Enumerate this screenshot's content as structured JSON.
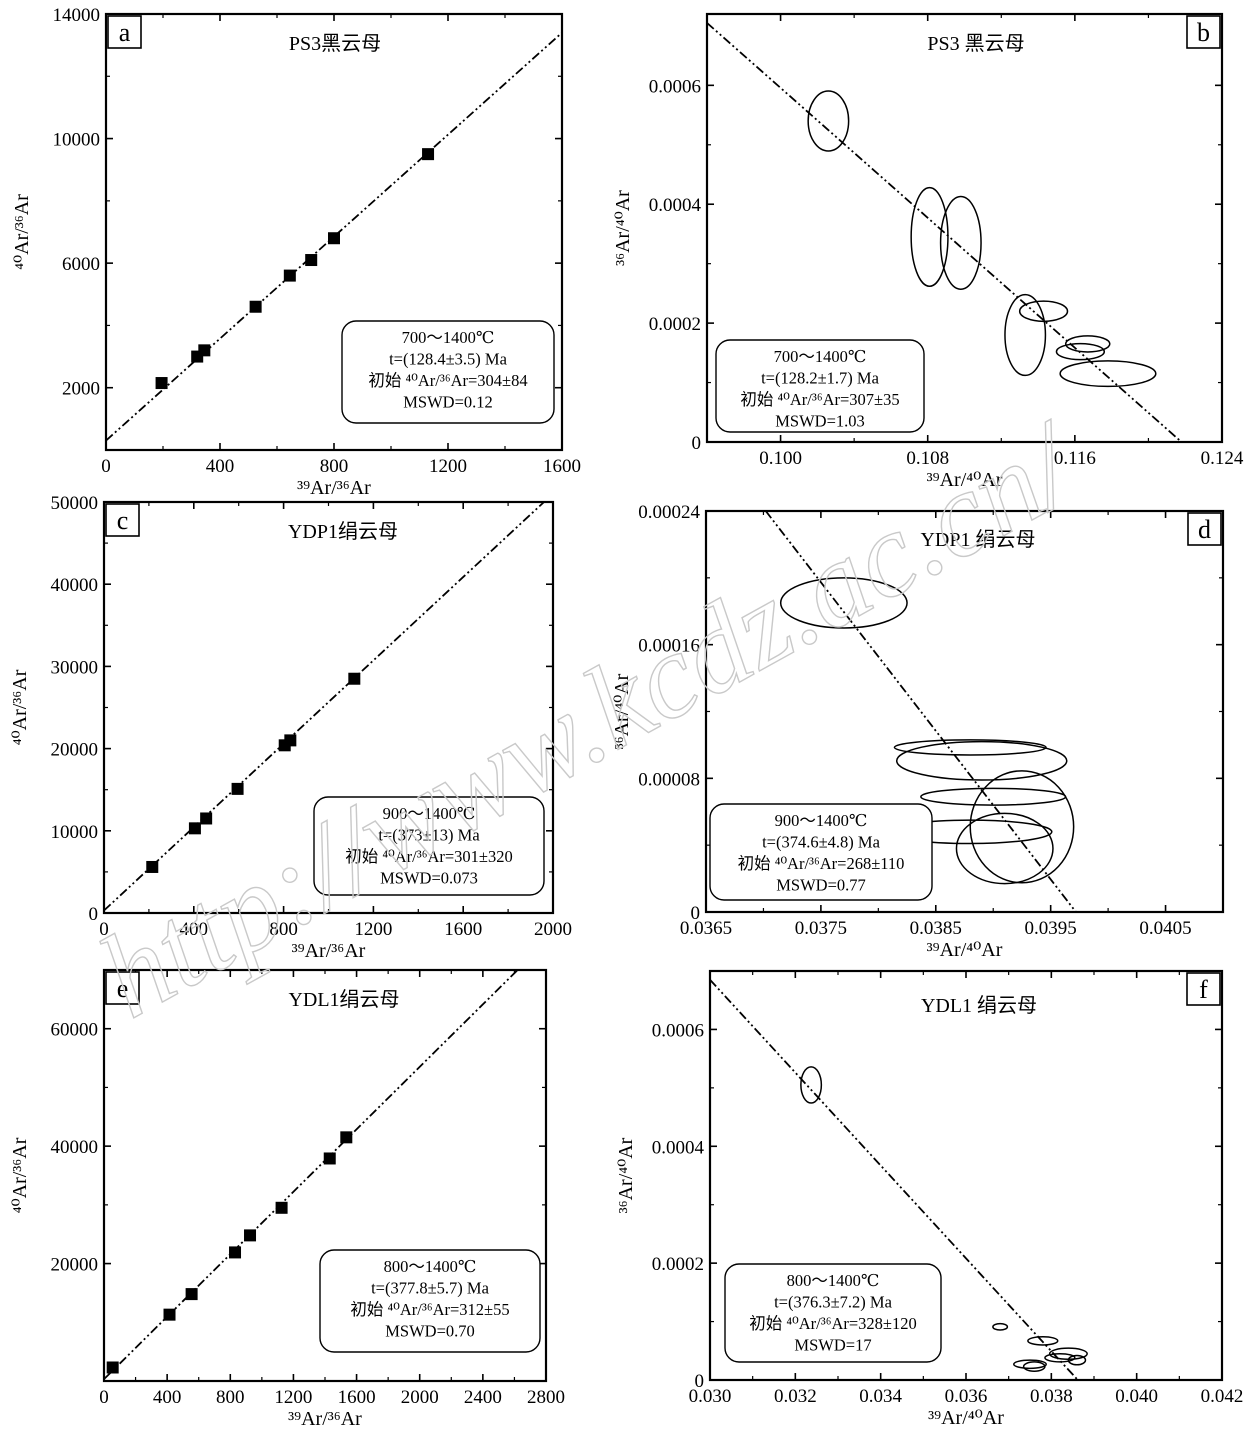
{
  "watermark": "http://www.kcdz.ac.cn/",
  "chart_data": [
    {
      "id": "a",
      "type": "scatter",
      "letter": "a",
      "title": "PS3黑云母",
      "xlabel": "³⁹Ar/³⁶Ar",
      "ylabel": "⁴⁰Ar/³⁶Ar",
      "xlim": [
        0,
        1600
      ],
      "ylim": [
        0,
        14000
      ],
      "xticks": [
        0,
        400,
        800,
        1200,
        1600
      ],
      "xtick_labels": [
        "0",
        "400",
        "800",
        "1200",
        "1600"
      ],
      "yticks": [
        2000,
        6000,
        10000,
        14000
      ],
      "ytick_labels": [
        "2000",
        "6000",
        "10000",
        "14000"
      ],
      "points": [
        {
          "x": 195,
          "y": 2150
        },
        {
          "x": 320,
          "y": 3000
        },
        {
          "x": 345,
          "y": 3200
        },
        {
          "x": 525,
          "y": 4600
        },
        {
          "x": 645,
          "y": 5600
        },
        {
          "x": 720,
          "y": 6100
        },
        {
          "x": 800,
          "y": 6800
        },
        {
          "x": 1130,
          "y": 9500
        }
      ],
      "fit_line": {
        "x0": 0,
        "y0": 304,
        "x1": 1600,
        "y1": 13400
      },
      "annotation": [
        "700～1400℃",
        "t=(128.4±3.5) Ma",
        "初始 ⁴⁰Ar/³⁶Ar=304±84",
        "MSWD=0.12"
      ]
    },
    {
      "id": "b",
      "type": "scatter",
      "letter": "b",
      "title": "PS3 黑云母",
      "xlabel": "³⁹Ar/⁴⁰Ar",
      "ylabel": "³⁶Ar/⁴⁰Ar",
      "xlim": [
        0.096,
        0.124
      ],
      "ylim": [
        0,
        0.00072
      ],
      "xticks": [
        0.1,
        0.108,
        0.116,
        0.124
      ],
      "xtick_labels": [
        "0.100",
        "0.108",
        "0.116",
        "0.124"
      ],
      "yticks": [
        0,
        0.0002,
        0.0004,
        0.0006
      ],
      "ytick_labels": [
        "0",
        "0.0002",
        "0.0004",
        "0.0006"
      ],
      "ellipses": [
        {
          "cx": 0.1026,
          "cy": 0.00054,
          "rx": 0.0011,
          "ry": 5.05e-05
        },
        {
          "cx": 0.1081,
          "cy": 0.000345,
          "rx": 0.001,
          "ry": 8.3e-05
        },
        {
          "cx": 0.1098,
          "cy": 0.000335,
          "rx": 0.0011,
          "ry": 7.8e-05
        },
        {
          "cx": 0.1133,
          "cy": 0.00018,
          "rx": 0.0011,
          "ry": 6.8e-05
        },
        {
          "cx": 0.1143,
          "cy": 0.00022,
          "rx": 0.0013,
          "ry": 1.7e-05
        },
        {
          "cx": 0.1167,
          "cy": 0.000165,
          "rx": 0.0012,
          "ry": 1.35e-05
        },
        {
          "cx": 0.1163,
          "cy": 0.000152,
          "rx": 0.0013,
          "ry": 1.35e-05
        },
        {
          "cx": 0.1178,
          "cy": 0.000115,
          "rx": 0.0026,
          "ry": 2.15e-05
        }
      ],
      "fit_line": {
        "x0": 0.096,
        "y0": 0.000705,
        "x1": 0.1218,
        "y1": 0.0
      },
      "annotation": [
        "700～1400℃",
        "t=(128.2±1.7) Ma",
        "初始 ⁴⁰Ar/³⁶Ar=307±35",
        "MSWD=1.03"
      ]
    },
    {
      "id": "c",
      "type": "scatter",
      "letter": "c",
      "title": "YDP1绢云母",
      "xlabel": "³⁹Ar/³⁶Ar",
      "ylabel": "⁴⁰Ar/³⁶Ar",
      "xlim": [
        0,
        2000
      ],
      "ylim": [
        0,
        50000
      ],
      "xticks": [
        0,
        400,
        800,
        1200,
        1600,
        2000
      ],
      "xtick_labels": [
        "0",
        "400",
        "800",
        "1200",
        "1600",
        "2000"
      ],
      "yticks": [
        0,
        10000,
        20000,
        30000,
        40000,
        50000
      ],
      "ytick_labels": [
        "0",
        "10000",
        "20000",
        "30000",
        "40000",
        "50000"
      ],
      "points": [
        {
          "x": 215,
          "y": 5600
        },
        {
          "x": 405,
          "y": 10300
        },
        {
          "x": 455,
          "y": 11500
        },
        {
          "x": 595,
          "y": 15100
        },
        {
          "x": 805,
          "y": 20400
        },
        {
          "x": 830,
          "y": 21000
        },
        {
          "x": 1115,
          "y": 28500
        }
      ],
      "fit_line": {
        "x0": 0,
        "y0": 301,
        "x1": 1960,
        "y1": 50000
      },
      "annotation": [
        "900～1400℃",
        "t=(373±13) Ma",
        "初始 ⁴⁰Ar/³⁶Ar=301±320",
        "MSWD=0.073"
      ]
    },
    {
      "id": "d",
      "type": "scatter",
      "letter": "d",
      "title": "YDP1 绢云母",
      "xlabel": "³⁹Ar/⁴⁰Ar",
      "ylabel": "³⁶Ar/⁴⁰Ar",
      "xlim": [
        0.0365,
        0.041
      ],
      "ylim": [
        0,
        0.00024
      ],
      "xticks": [
        0.0365,
        0.0375,
        0.0385,
        0.0395,
        0.0405
      ],
      "xtick_labels": [
        "0.0365",
        "0.0375",
        "0.0385",
        "0.0395",
        "0.0405"
      ],
      "yticks": [
        0,
        8e-05,
        0.00016,
        0.00024
      ],
      "ytick_labels": [
        "0",
        "0.00008",
        "0.00016",
        "0.00024"
      ],
      "ellipses": [
        {
          "cx": 0.0377,
          "cy": 0.000185,
          "rx": 0.00055,
          "ry": 1.5e-05
        },
        {
          "cx": 0.0388,
          "cy": 9.85e-05,
          "rx": 0.00066,
          "ry": 4.5e-06
        },
        {
          "cx": 0.0389,
          "cy": 9.05e-05,
          "rx": 0.00074,
          "ry": 1.15e-05
        },
        {
          "cx": 0.039,
          "cy": 6.9e-05,
          "rx": 0.00063,
          "ry": 5e-06
        },
        {
          "cx": 0.03925,
          "cy": 5.1e-05,
          "rx": 0.00045,
          "ry": 3.35e-05
        },
        {
          "cx": 0.0388,
          "cy": 4.8e-05,
          "rx": 0.00071,
          "ry": 7e-06
        },
        {
          "cx": 0.0391,
          "cy": 3.8e-05,
          "rx": 0.00042,
          "ry": 2.1e-05
        }
      ],
      "fit_line": {
        "x0": 0.03702,
        "y0": 0.00024,
        "x1": 0.03972,
        "y1": 0.0
      },
      "annotation": [
        "900～1400℃",
        "t=(374.6±4.8) Ma",
        "初始 ⁴⁰Ar/³⁶Ar=268±110",
        "MSWD=0.77"
      ]
    },
    {
      "id": "e",
      "type": "scatter",
      "letter": "e",
      "title": "YDL1绢云母",
      "xlabel": "³⁹Ar/³⁶Ar",
      "ylabel": "⁴⁰Ar/³⁶Ar",
      "xlim": [
        0,
        2800
      ],
      "ylim": [
        0,
        70000
      ],
      "xticks": [
        0,
        400,
        800,
        1200,
        1600,
        2000,
        2400,
        2800
      ],
      "xtick_labels": [
        "0",
        "400",
        "800",
        "1200",
        "1600",
        "2000",
        "2400",
        "2800"
      ],
      "yticks": [
        20000,
        40000,
        60000
      ],
      "ytick_labels": [
        "20000",
        "40000",
        "60000"
      ],
      "points": [
        {
          "x": 55,
          "y": 2300
        },
        {
          "x": 415,
          "y": 11300
        },
        {
          "x": 555,
          "y": 14800
        },
        {
          "x": 830,
          "y": 21900
        },
        {
          "x": 925,
          "y": 24800
        },
        {
          "x": 1125,
          "y": 29500
        },
        {
          "x": 1430,
          "y": 37900
        },
        {
          "x": 1535,
          "y": 41500
        }
      ],
      "fit_line": {
        "x0": 0,
        "y0": 312,
        "x1": 2620,
        "y1": 70000
      },
      "annotation": [
        "800～1400℃",
        "t=(377.8±5.7) Ma",
        "初始 ⁴⁰Ar/³⁶Ar=312±55",
        "MSWD=0.70"
      ]
    },
    {
      "id": "f",
      "type": "scatter",
      "letter": "f",
      "title": "YDL1 绢云母",
      "xlabel": "³⁹Ar/⁴⁰Ar",
      "ylabel": "³⁶Ar/⁴⁰Ar",
      "xlim": [
        0.03,
        0.042
      ],
      "ylim": [
        0,
        0.0007
      ],
      "xticks": [
        0.03,
        0.032,
        0.034,
        0.036,
        0.038,
        0.04,
        0.042
      ],
      "xtick_labels": [
        "0.030",
        "0.032",
        "0.034",
        "0.036",
        "0.038",
        "0.040",
        "0.042"
      ],
      "yticks": [
        0,
        0.0002,
        0.0004,
        0.0006
      ],
      "ytick_labels": [
        "0",
        "0.0002",
        "0.0004",
        "0.0006"
      ],
      "ellipses": [
        {
          "cx": 0.03237,
          "cy": 0.000505,
          "rx": 0.00024,
          "ry": 3.1e-05
        },
        {
          "cx": 0.0368,
          "cy": 9.1e-05,
          "rx": 0.00017,
          "ry": 5.5e-06
        },
        {
          "cx": 0.0378,
          "cy": 6.7e-05,
          "rx": 0.00035,
          "ry": 7e-06
        },
        {
          "cx": 0.0384,
          "cy": 4.5e-05,
          "rx": 0.00044,
          "ry": 9.5e-06
        },
        {
          "cx": 0.0382,
          "cy": 3.8e-05,
          "rx": 0.00035,
          "ry": 7e-06
        },
        {
          "cx": 0.0386,
          "cy": 3.4e-05,
          "rx": 0.0002,
          "ry": 8e-06
        },
        {
          "cx": 0.0375,
          "cy": 2.7e-05,
          "rx": 0.00038,
          "ry": 7e-06
        },
        {
          "cx": 0.0376,
          "cy": 2.3e-05,
          "rx": 0.00025,
          "ry": 8e-06
        }
      ],
      "fit_line": {
        "x0": 0.03,
        "y0": 0.000685,
        "x1": 0.03862,
        "y1": 0.0
      },
      "annotation": [
        "800～1400℃",
        "t=(376.3±7.2) Ma",
        "初始 ⁴⁰Ar/³⁶Ar=328±120",
        "MSWD=17"
      ]
    }
  ]
}
